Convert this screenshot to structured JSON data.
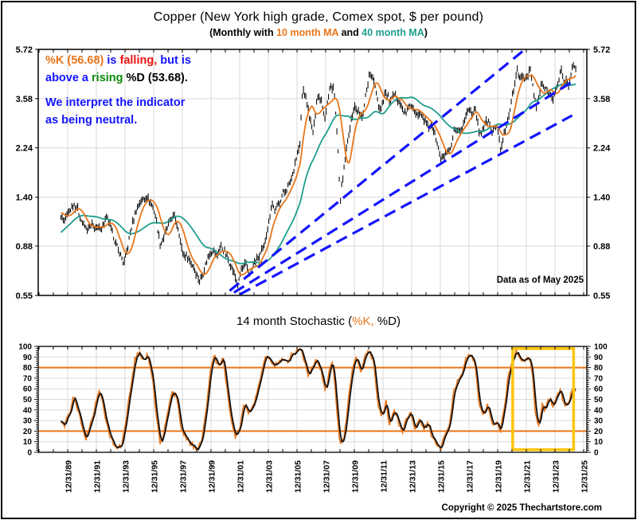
{
  "header": {
    "title": "Copper (New York high grade, Comex spot, $ per pound)",
    "subtitle_segments": [
      {
        "text": "(Monthly with ",
        "color": "#000000"
      },
      {
        "text": "10 month MA",
        "color": "#E8761B"
      },
      {
        "text": " and ",
        "color": "#000000"
      },
      {
        "text": "40 month MA",
        "color": "#1F9E8E"
      },
      {
        "text": ")",
        "color": "#000000"
      }
    ]
  },
  "annotation": {
    "line1": [
      {
        "text": "%K (56.68)",
        "color": "#E8761B"
      },
      {
        "text": " is ",
        "color": "#1414FF"
      },
      {
        "text": "falling,",
        "color": "#EE1111"
      },
      {
        "text": " but is",
        "color": "#1414FF"
      }
    ],
    "line2": [
      {
        "text": "above a ",
        "color": "#1414FF"
      },
      {
        "text": "rising",
        "color": "#0B8A0B"
      },
      {
        "text": " %D (53.68).",
        "color": "#000000"
      }
    ],
    "line3": [
      {
        "text": "We interpret the indicator",
        "color": "#1414FF"
      }
    ],
    "line4": [
      {
        "text": "as being neutral.",
        "color": "#1414FF"
      }
    ]
  },
  "stochastic_title_segments": [
    {
      "text": "14 month Stochastic (",
      "color": "#000000"
    },
    {
      "text": "%K,",
      "color": "#E8761B"
    },
    {
      "text": " %D)",
      "color": "#000000"
    }
  ],
  "footer": {
    "copyright": "Copyright © 2025 Thechartstore.com"
  },
  "colors": {
    "price": "#000000",
    "ma10": "#E8761B",
    "ma40": "#1F9E8E",
    "trendline": "#1414FF",
    "grid": "#D9D9D9",
    "k_line": "#E8761B",
    "d_line": "#111111",
    "highlight": "#FFC408",
    "frame": "#000000"
  },
  "chart_data": [
    {
      "type": "bar",
      "subtype": "monthly high-low price bars with moving averages",
      "title": "Copper (New York high grade, Comex spot, $ per pound)",
      "note": "Data as of May 2025",
      "y_scale": "log",
      "y_range": [
        0.55,
        5.72
      ],
      "y_ticks": [
        "5.72",
        "3.58",
        "2.24",
        "1.40",
        "0.88",
        "0.55"
      ],
      "grid_y_values": [
        3.58,
        2.24,
        1.4,
        0.88
      ],
      "x_tick_years": [
        1990,
        1992,
        1994,
        1996,
        1998,
        2000,
        2002,
        2004,
        2006,
        2008,
        2010,
        2012,
        2014,
        2016,
        2018,
        2020,
        2022,
        2024,
        2026
      ],
      "x_tick_labels": [
        "12/31/89",
        "12/31/91",
        "12/31/93",
        "12/31/95",
        "12/31/97",
        "12/31/99",
        "12/31/01",
        "12/31/03",
        "12/31/05",
        "12/31/07",
        "12/31/09",
        "12/31/11",
        "12/31/13",
        "12/31/15",
        "12/31/17",
        "12/31/19",
        "12/31/21",
        "12/31/23",
        "12/31/25"
      ],
      "data_start_year": 1989.5,
      "data_end_year": 2025.42,
      "ma_windows": [
        10,
        40
      ],
      "prehistory_keypoints": [
        [
          1986.2,
          0.68
        ],
        [
          1987.0,
          0.78
        ],
        [
          1987.6,
          0.95
        ],
        [
          1988.0,
          1.15
        ],
        [
          1988.5,
          1.1
        ],
        [
          1989.0,
          1.25
        ],
        [
          1989.4,
          1.2
        ]
      ],
      "price_keypoints": [
        [
          1989.5,
          1.18
        ],
        [
          1989.75,
          1.12
        ],
        [
          1990.0,
          1.2
        ],
        [
          1990.4,
          1.32
        ],
        [
          1990.7,
          1.25
        ],
        [
          1991.0,
          1.1
        ],
        [
          1991.4,
          1.02
        ],
        [
          1991.7,
          1.08
        ],
        [
          1992.0,
          1.03
        ],
        [
          1992.4,
          1.06
        ],
        [
          1992.7,
          1.15
        ],
        [
          1993.0,
          1.05
        ],
        [
          1993.3,
          0.92
        ],
        [
          1993.6,
          0.83
        ],
        [
          1993.92,
          0.74
        ],
        [
          1994.2,
          0.88
        ],
        [
          1994.5,
          1.08
        ],
        [
          1994.8,
          1.25
        ],
        [
          1995.1,
          1.36
        ],
        [
          1995.5,
          1.41
        ],
        [
          1995.8,
          1.32
        ],
        [
          1996.1,
          1.2
        ],
        [
          1996.45,
          0.89
        ],
        [
          1996.7,
          0.95
        ],
        [
          1997.0,
          1.07
        ],
        [
          1997.4,
          1.18
        ],
        [
          1997.7,
          1.05
        ],
        [
          1998.0,
          0.82
        ],
        [
          1998.4,
          0.78
        ],
        [
          1998.8,
          0.72
        ],
        [
          1999.2,
          0.63
        ],
        [
          1999.5,
          0.7
        ],
        [
          1999.8,
          0.8
        ],
        [
          2000.1,
          0.85
        ],
        [
          2000.4,
          0.8
        ],
        [
          2000.7,
          0.88
        ],
        [
          2001.0,
          0.82
        ],
        [
          2001.3,
          0.75
        ],
        [
          2001.6,
          0.68
        ],
        [
          2001.88,
          0.6
        ],
        [
          2002.1,
          0.7
        ],
        [
          2002.4,
          0.74
        ],
        [
          2002.75,
          0.67
        ],
        [
          2003.0,
          0.75
        ],
        [
          2003.4,
          0.8
        ],
        [
          2003.7,
          0.88
        ],
        [
          2004.0,
          1.08
        ],
        [
          2004.25,
          1.32
        ],
        [
          2004.5,
          1.22
        ],
        [
          2004.8,
          1.35
        ],
        [
          2005.0,
          1.45
        ],
        [
          2005.4,
          1.55
        ],
        [
          2005.7,
          1.75
        ],
        [
          2006.0,
          2.1
        ],
        [
          2006.2,
          2.3
        ],
        [
          2006.4,
          3.95
        ],
        [
          2006.7,
          3.45
        ],
        [
          2006.95,
          2.88
        ],
        [
          2007.15,
          2.55
        ],
        [
          2007.4,
          3.65
        ],
        [
          2007.7,
          3.55
        ],
        [
          2007.95,
          3.0
        ],
        [
          2008.3,
          3.95
        ],
        [
          2008.55,
          4.0
        ],
        [
          2008.78,
          2.6
        ],
        [
          2009.0,
          1.35
        ],
        [
          2009.25,
          1.75
        ],
        [
          2009.5,
          2.3
        ],
        [
          2009.8,
          2.95
        ],
        [
          2010.0,
          3.3
        ],
        [
          2010.3,
          3.15
        ],
        [
          2010.55,
          2.95
        ],
        [
          2010.8,
          3.75
        ],
        [
          2011.1,
          4.55
        ],
        [
          2011.45,
          4.1
        ],
        [
          2011.75,
          3.2
        ],
        [
          2012.0,
          3.5
        ],
        [
          2012.15,
          3.85
        ],
        [
          2012.5,
          3.45
        ],
        [
          2012.8,
          3.7
        ],
        [
          2013.1,
          3.55
        ],
        [
          2013.45,
          3.1
        ],
        [
          2013.75,
          3.25
        ],
        [
          2014.0,
          3.35
        ],
        [
          2014.3,
          3.02
        ],
        [
          2014.6,
          3.18
        ],
        [
          2014.95,
          2.88
        ],
        [
          2015.2,
          2.7
        ],
        [
          2015.4,
          2.85
        ],
        [
          2015.8,
          2.3
        ],
        [
          2016.05,
          2.0
        ],
        [
          2016.4,
          2.12
        ],
        [
          2016.75,
          2.18
        ],
        [
          2016.95,
          2.65
        ],
        [
          2017.2,
          2.6
        ],
        [
          2017.55,
          2.72
        ],
        [
          2017.95,
          3.25
        ],
        [
          2018.2,
          3.12
        ],
        [
          2018.45,
          3.28
        ],
        [
          2018.68,
          2.62
        ],
        [
          2019.0,
          2.68
        ],
        [
          2019.3,
          2.92
        ],
        [
          2019.65,
          2.58
        ],
        [
          2019.95,
          2.8
        ],
        [
          2020.2,
          2.17
        ],
        [
          2020.5,
          2.65
        ],
        [
          2020.8,
          3.1
        ],
        [
          2021.0,
          3.55
        ],
        [
          2021.2,
          4.1
        ],
        [
          2021.38,
          4.75
        ],
        [
          2021.6,
          4.3
        ],
        [
          2021.85,
          4.35
        ],
        [
          2022.1,
          4.5
        ],
        [
          2022.25,
          4.85
        ],
        [
          2022.55,
          3.65
        ],
        [
          2022.7,
          3.3
        ],
        [
          2022.95,
          3.75
        ],
        [
          2023.05,
          4.15
        ],
        [
          2023.35,
          3.9
        ],
        [
          2023.6,
          3.75
        ],
        [
          2023.85,
          3.62
        ],
        [
          2024.1,
          3.9
        ],
        [
          2024.25,
          4.05
        ],
        [
          2024.42,
          4.95
        ],
        [
          2024.6,
          4.15
        ],
        [
          2024.75,
          4.25
        ],
        [
          2024.95,
          4.05
        ],
        [
          2025.1,
          4.45
        ],
        [
          2025.25,
          5.05
        ],
        [
          2025.42,
          4.68
        ]
      ],
      "trendlines": [
        {
          "x1": 2001.3,
          "p1": 0.575,
          "x2": 2021.9,
          "p2": 5.72
        },
        {
          "x1": 2001.6,
          "p1": 0.565,
          "x2": 2025.2,
          "p2": 4.2
        },
        {
          "x1": 2002.0,
          "p1": 0.555,
          "x2": 2025.2,
          "p2": 3.05
        }
      ]
    },
    {
      "type": "line",
      "title": "14 month Stochastic (%K, %D)",
      "y_range": [
        0,
        100
      ],
      "y_ticks": [
        100,
        90,
        80,
        70,
        60,
        50,
        40,
        30,
        20,
        10,
        0
      ],
      "ref_lines": [
        80,
        20
      ],
      "k_last": 56.68,
      "d_last": 53.68,
      "d_method": "3-month smoothing of %K",
      "highlight_box": {
        "x1": 2021.05,
        "x2": 2025.3,
        "y1": 98,
        "y2": 2.5
      },
      "k_keypoints": [
        [
          1989.5,
          33
        ],
        [
          1989.75,
          25
        ],
        [
          1990.1,
          35
        ],
        [
          1990.4,
          52
        ],
        [
          1990.7,
          42
        ],
        [
          1991.0,
          22
        ],
        [
          1991.3,
          13
        ],
        [
          1991.6,
          28
        ],
        [
          1991.9,
          42
        ],
        [
          1992.2,
          60
        ],
        [
          1992.5,
          42
        ],
        [
          1992.8,
          22
        ],
        [
          1993.1,
          10
        ],
        [
          1993.5,
          5
        ],
        [
          1993.8,
          8
        ],
        [
          1994.1,
          32
        ],
        [
          1994.4,
          62
        ],
        [
          1994.7,
          88
        ],
        [
          1995.0,
          95
        ],
        [
          1995.3,
          85
        ],
        [
          1995.6,
          93
        ],
        [
          1995.9,
          72
        ],
        [
          1996.2,
          32
        ],
        [
          1996.45,
          8
        ],
        [
          1996.7,
          16
        ],
        [
          1997.0,
          40
        ],
        [
          1997.3,
          58
        ],
        [
          1997.6,
          52
        ],
        [
          1997.9,
          25
        ],
        [
          1998.2,
          15
        ],
        [
          1998.5,
          10
        ],
        [
          1998.8,
          5
        ],
        [
          1999.1,
          3
        ],
        [
          1999.4,
          14
        ],
        [
          1999.7,
          45
        ],
        [
          2000.0,
          82
        ],
        [
          2000.25,
          90
        ],
        [
          2000.55,
          80
        ],
        [
          2000.85,
          88
        ],
        [
          2001.1,
          62
        ],
        [
          2001.4,
          32
        ],
        [
          2001.7,
          15
        ],
        [
          2002.0,
          22
        ],
        [
          2002.3,
          48
        ],
        [
          2002.6,
          38
        ],
        [
          2002.9,
          42
        ],
        [
          2003.2,
          55
        ],
        [
          2003.5,
          75
        ],
        [
          2003.8,
          88
        ],
        [
          2004.1,
          90
        ],
        [
          2004.4,
          80
        ],
        [
          2004.7,
          86
        ],
        [
          2005.0,
          90
        ],
        [
          2005.3,
          84
        ],
        [
          2005.6,
          92
        ],
        [
          2005.9,
          95
        ],
        [
          2006.2,
          97
        ],
        [
          2006.5,
          88
        ],
        [
          2006.8,
          72
        ],
        [
          2007.1,
          80
        ],
        [
          2007.4,
          88
        ],
        [
          2007.7,
          75
        ],
        [
          2008.0,
          58
        ],
        [
          2008.3,
          80
        ],
        [
          2008.5,
          87
        ],
        [
          2008.75,
          45
        ],
        [
          2009.0,
          8
        ],
        [
          2009.3,
          14
        ],
        [
          2009.6,
          50
        ],
        [
          2009.9,
          82
        ],
        [
          2010.15,
          90
        ],
        [
          2010.45,
          76
        ],
        [
          2010.75,
          90
        ],
        [
          2011.05,
          96
        ],
        [
          2011.35,
          85
        ],
        [
          2011.65,
          45
        ],
        [
          2011.9,
          32
        ],
        [
          2012.2,
          48
        ],
        [
          2012.45,
          26
        ],
        [
          2012.75,
          40
        ],
        [
          2013.05,
          30
        ],
        [
          2013.35,
          18
        ],
        [
          2013.65,
          32
        ],
        [
          2013.95,
          38
        ],
        [
          2014.25,
          20
        ],
        [
          2014.55,
          33
        ],
        [
          2014.85,
          22
        ],
        [
          2015.15,
          27
        ],
        [
          2015.45,
          12
        ],
        [
          2015.75,
          8
        ],
        [
          2016.05,
          4
        ],
        [
          2016.35,
          18
        ],
        [
          2016.65,
          28
        ],
        [
          2016.95,
          60
        ],
        [
          2017.25,
          68
        ],
        [
          2017.55,
          75
        ],
        [
          2017.85,
          90
        ],
        [
          2018.1,
          92
        ],
        [
          2018.4,
          86
        ],
        [
          2018.7,
          45
        ],
        [
          2019.0,
          34
        ],
        [
          2019.3,
          44
        ],
        [
          2019.6,
          26
        ],
        [
          2019.9,
          30
        ],
        [
          2020.15,
          18
        ],
        [
          2020.45,
          42
        ],
        [
          2020.75,
          72
        ],
        [
          2021.0,
          88
        ],
        [
          2021.3,
          95
        ],
        [
          2021.6,
          90
        ],
        [
          2021.9,
          86
        ],
        [
          2022.15,
          90
        ],
        [
          2022.4,
          78
        ],
        [
          2022.65,
          35
        ],
        [
          2022.85,
          25
        ],
        [
          2023.1,
          45
        ],
        [
          2023.35,
          40
        ],
        [
          2023.6,
          52
        ],
        [
          2023.85,
          44
        ],
        [
          2024.1,
          50
        ],
        [
          2024.4,
          62
        ],
        [
          2024.6,
          46
        ],
        [
          2024.8,
          44
        ],
        [
          2025.0,
          48
        ],
        [
          2025.2,
          60
        ],
        [
          2025.42,
          56.7
        ]
      ]
    }
  ]
}
